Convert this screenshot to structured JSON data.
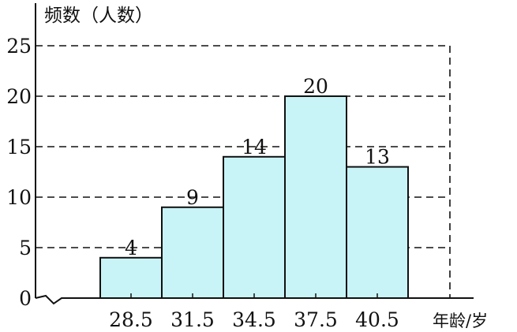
{
  "chart_data": {
    "type": "bar",
    "histogram": true,
    "categories": [
      "28.5",
      "31.5",
      "34.5",
      "37.5",
      "40.5"
    ],
    "values": [
      4,
      9,
      14,
      20,
      13
    ],
    "data_labels": [
      "4",
      "9",
      "14",
      "20",
      "13"
    ],
    "title": "",
    "xlabel": "年龄/岁",
    "ylabel": "频数（人数）",
    "ylim": [
      0,
      25
    ],
    "yticks": [
      "0",
      "5",
      "10",
      "15",
      "20",
      "25"
    ],
    "grid": "dashed horizontal lines at y ticks",
    "x_axis_break": true,
    "bar_color": "#c8f4f8",
    "edge_color": "#111111"
  }
}
